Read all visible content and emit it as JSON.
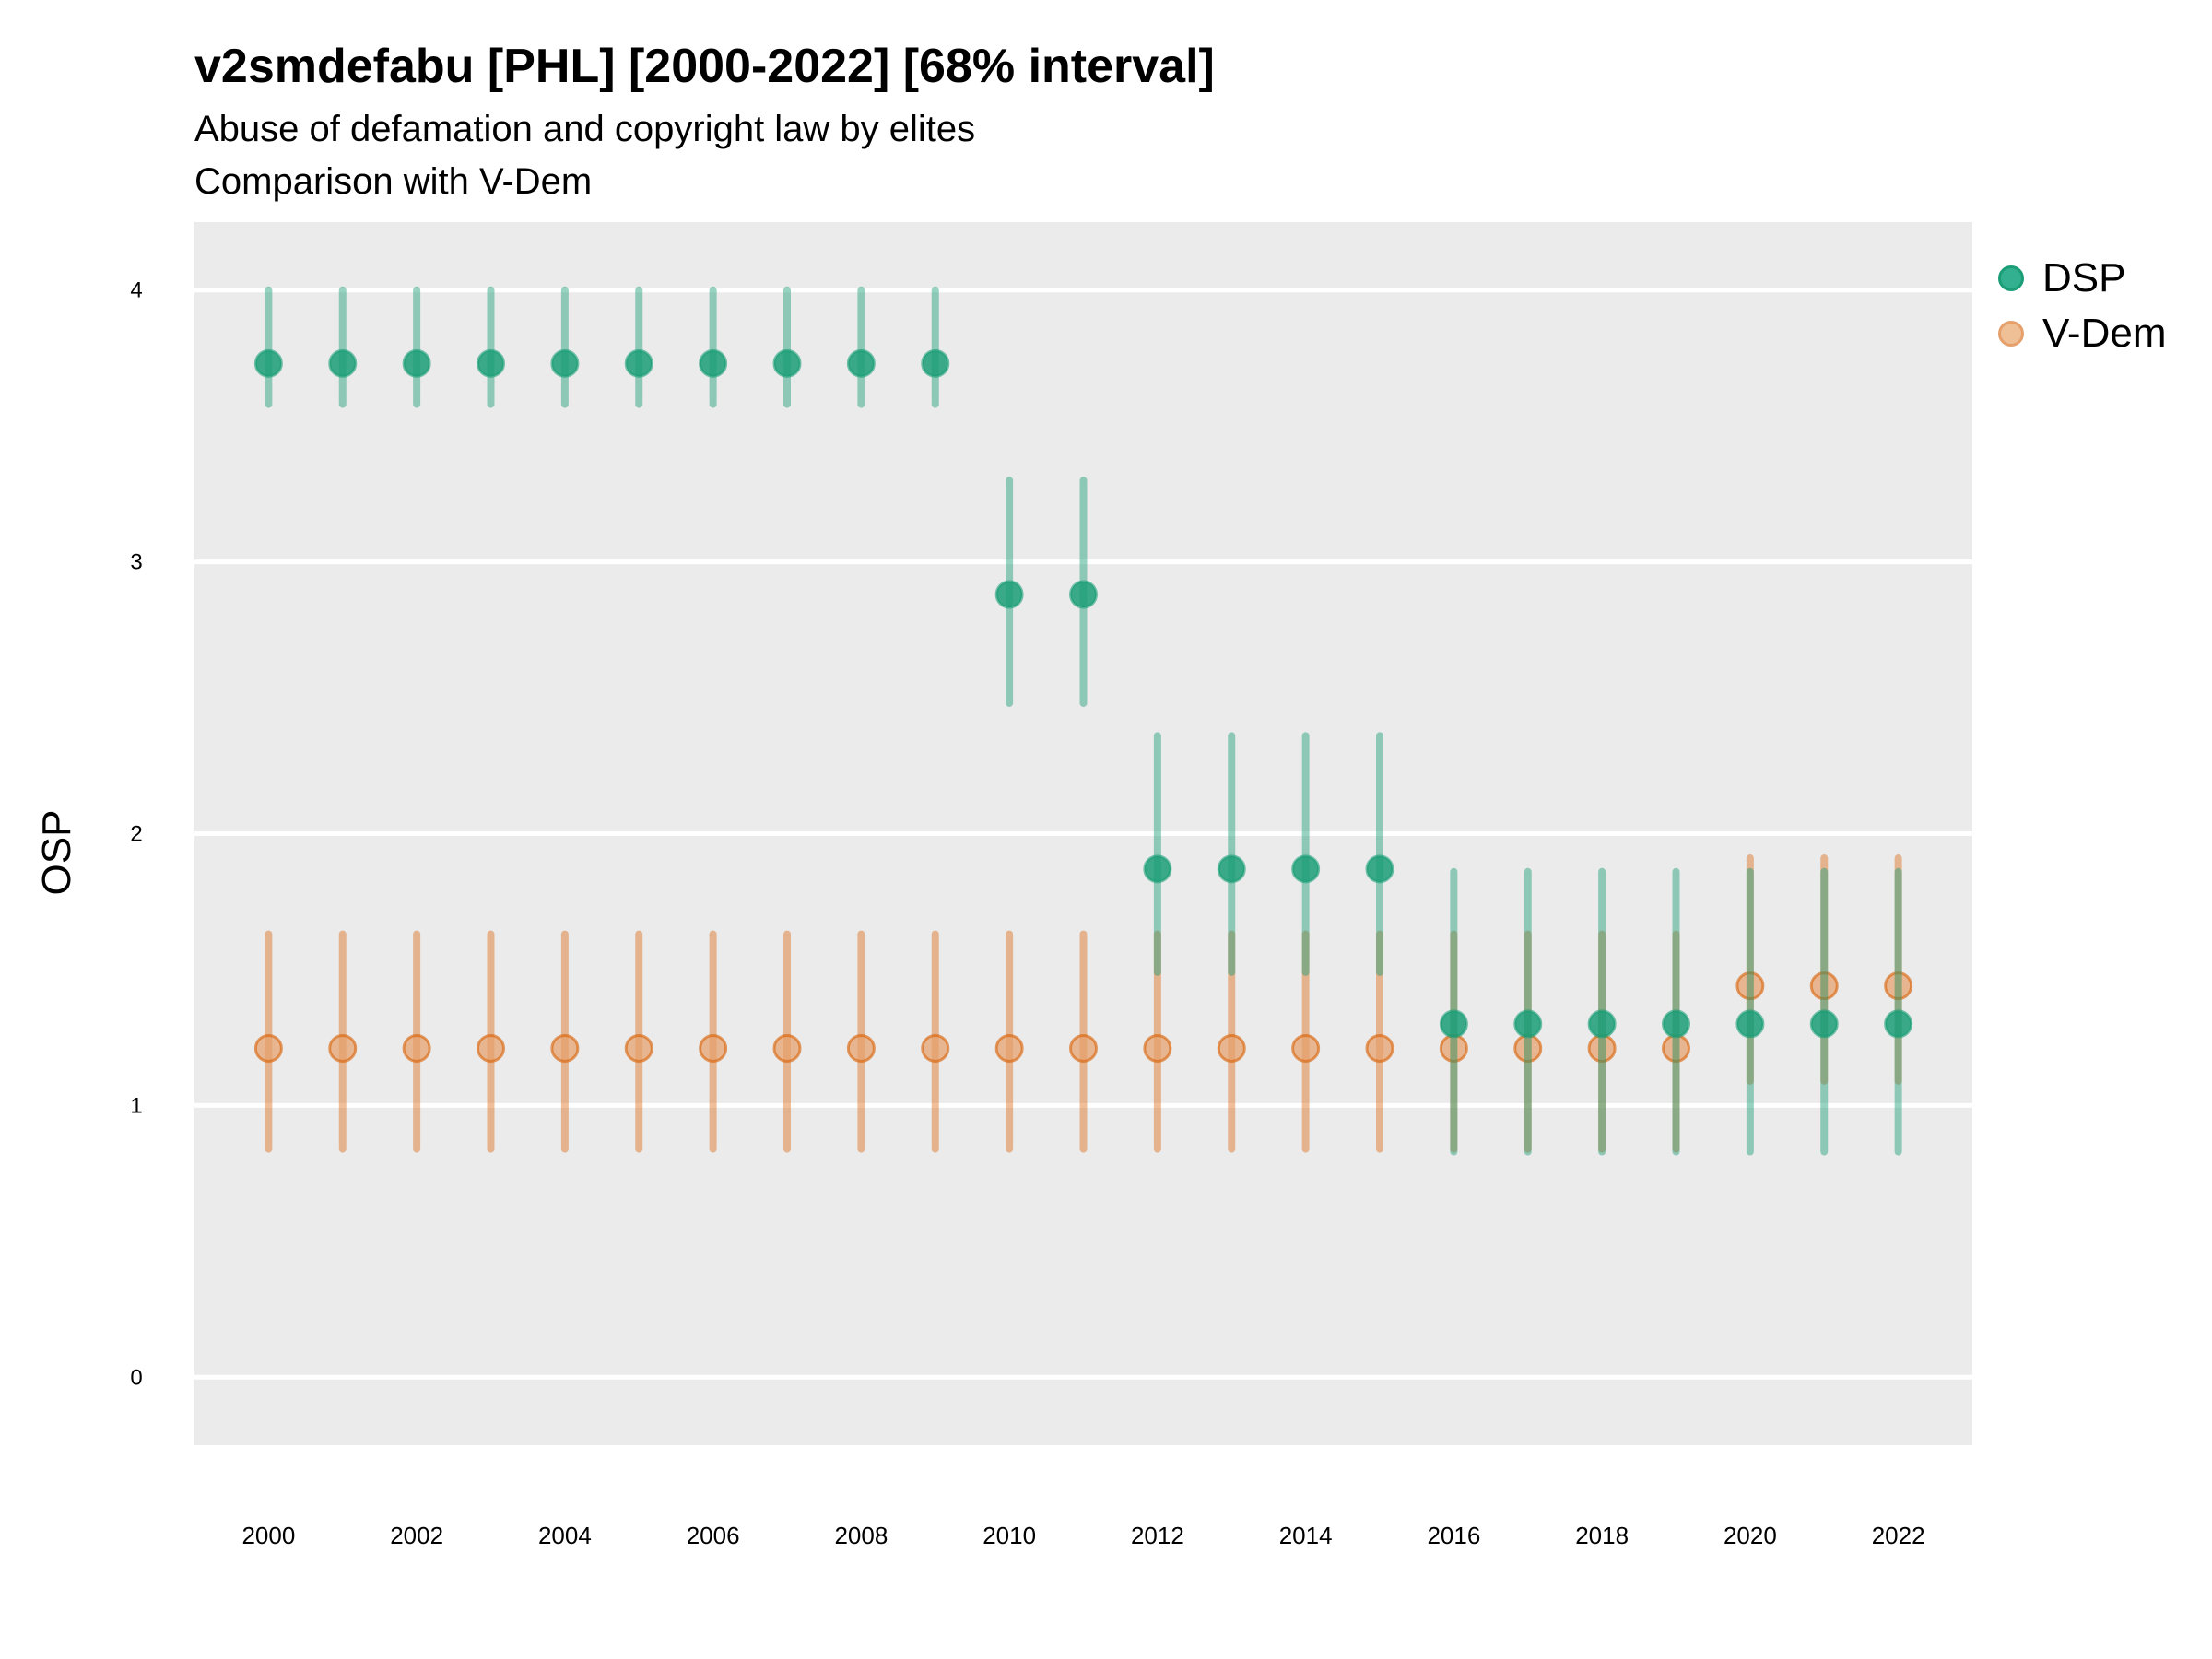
{
  "header": {
    "title": "v2smdefabu [PHL] [2000-2022] [68% interval]",
    "subtitle": "Abuse of defamation and copyright law by elites",
    "subtitle2": "Comparison with V-Dem"
  },
  "legend": {
    "items": [
      {
        "label": "DSP",
        "color": "#1b9e77"
      },
      {
        "label": "V-Dem",
        "color": "#e6a06b"
      }
    ]
  },
  "chart_data": {
    "type": "scatter",
    "title": "v2smdefabu [PHL] [2000-2022] [68% interval]",
    "subtitle": "Abuse of defamation and copyright law by elites / Comparison with V-Dem",
    "xlabel": "",
    "ylabel": "OSP",
    "xlim": [
      1999,
      2023
    ],
    "ylim": [
      -0.25,
      4.25
    ],
    "grid": true,
    "legend_position": "right",
    "x_ticks": [
      "2000",
      "2002",
      "2004",
      "2006",
      "2008",
      "2010",
      "2012",
      "2014",
      "2016",
      "2018",
      "2020",
      "2022"
    ],
    "y_ticks": [
      "0",
      "1",
      "2",
      "3",
      "4"
    ],
    "x": [
      2000,
      2001,
      2002,
      2003,
      2004,
      2005,
      2006,
      2007,
      2008,
      2009,
      2010,
      2011,
      2012,
      2013,
      2014,
      2015,
      2016,
      2017,
      2018,
      2019,
      2020,
      2021,
      2022
    ],
    "series": [
      {
        "name": "DSP",
        "color": "#1b9e77",
        "values": [
          3.73,
          3.73,
          3.73,
          3.73,
          3.73,
          3.73,
          3.73,
          3.73,
          3.73,
          3.73,
          2.88,
          2.88,
          1.87,
          1.87,
          1.87,
          1.87,
          1.3,
          1.3,
          1.3,
          1.3,
          1.3,
          1.3,
          1.3
        ],
        "upper": [
          4.0,
          4.0,
          4.0,
          4.0,
          4.0,
          4.0,
          4.0,
          4.0,
          4.0,
          4.0,
          3.3,
          3.3,
          2.36,
          2.36,
          2.36,
          2.36,
          1.86,
          1.86,
          1.86,
          1.86,
          1.86,
          1.86,
          1.86
        ],
        "lower": [
          3.58,
          3.58,
          3.58,
          3.58,
          3.58,
          3.58,
          3.58,
          3.58,
          3.58,
          3.58,
          2.48,
          2.48,
          1.49,
          1.49,
          1.49,
          1.49,
          0.83,
          0.83,
          0.83,
          0.83,
          0.83,
          0.83,
          0.83
        ]
      },
      {
        "name": "V-Dem",
        "color": "#e6a06b",
        "values": [
          1.21,
          1.21,
          1.21,
          1.21,
          1.21,
          1.21,
          1.21,
          1.21,
          1.21,
          1.21,
          1.21,
          1.21,
          1.21,
          1.21,
          1.21,
          1.21,
          1.21,
          1.21,
          1.21,
          1.21,
          1.44,
          1.44,
          1.44
        ],
        "upper": [
          1.63,
          1.63,
          1.63,
          1.63,
          1.63,
          1.63,
          1.63,
          1.63,
          1.63,
          1.63,
          1.63,
          1.63,
          1.63,
          1.63,
          1.63,
          1.63,
          1.63,
          1.63,
          1.63,
          1.63,
          1.91,
          1.91,
          1.91
        ],
        "lower": [
          0.84,
          0.84,
          0.84,
          0.84,
          0.84,
          0.84,
          0.84,
          0.84,
          0.84,
          0.84,
          0.84,
          0.84,
          0.84,
          0.84,
          0.84,
          0.84,
          0.84,
          0.84,
          0.84,
          0.84,
          1.09,
          1.09,
          1.09
        ]
      }
    ]
  }
}
